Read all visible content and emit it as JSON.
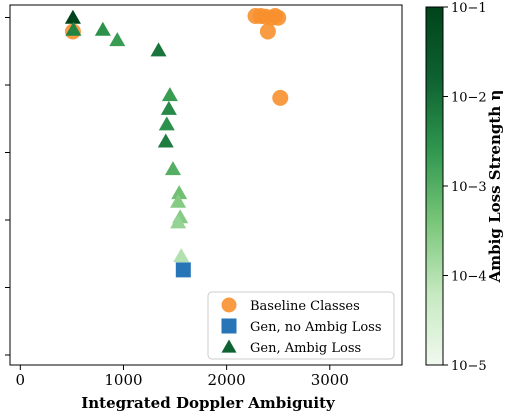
{
  "chart_data": {
    "type": "scatter",
    "title": "",
    "xlabel": "Integrated Doppler Ambiguity",
    "ylabel": "",
    "xlim": [
      -100,
      3700
    ],
    "ylim": [
      0,
      1
    ],
    "x_ticks": [
      "0",
      "1000",
      "2000",
      "3000"
    ],
    "y_ticks_labeled": false,
    "grid": false,
    "legend_position": "bottom-right",
    "colorbar": {
      "label": "Ambig Loss Strength η",
      "scale": "log",
      "range": [
        1e-05,
        0.1
      ],
      "tick_labels": [
        "10−1",
        "10−2",
        "10−3",
        "10−4",
        "10−5"
      ],
      "colors": [
        "#f1f9ef",
        "#c5e9c0",
        "#79c679",
        "#2f974e",
        "#0e6131",
        "#00441b"
      ]
    },
    "series": [
      {
        "name": "Baseline Classes",
        "marker": "circle",
        "color": "#f7902e",
        "points": [
          {
            "x": 510,
            "y": 0.955
          },
          {
            "x": 2280,
            "y": 1.0
          },
          {
            "x": 2330,
            "y": 1.0
          },
          {
            "x": 2380,
            "y": 0.998
          },
          {
            "x": 2440,
            "y": 0.995
          },
          {
            "x": 2470,
            "y": 1.0
          },
          {
            "x": 2500,
            "y": 0.995
          },
          {
            "x": 2400,
            "y": 0.955
          },
          {
            "x": 2520,
            "y": 0.762
          }
        ]
      },
      {
        "name": "Gen, no Ambig Loss",
        "marker": "square",
        "color": "#2775b6",
        "points": [
          {
            "x": 1580,
            "y": 0.262
          }
        ]
      },
      {
        "name": "Gen, Ambig Loss",
        "marker": "triangle",
        "color_by": "eta",
        "points": [
          {
            "x": 510,
            "y": 0.995,
            "eta": 0.1
          },
          {
            "x": 515,
            "y": 0.96,
            "eta": 0.005
          },
          {
            "x": 800,
            "y": 0.96,
            "eta": 0.003
          },
          {
            "x": 940,
            "y": 0.93,
            "eta": 0.002
          },
          {
            "x": 1340,
            "y": 0.9,
            "eta": 0.008
          },
          {
            "x": 1450,
            "y": 0.77,
            "eta": 0.002
          },
          {
            "x": 1440,
            "y": 0.73,
            "eta": 0.004
          },
          {
            "x": 1420,
            "y": 0.685,
            "eta": 0.003
          },
          {
            "x": 1410,
            "y": 0.635,
            "eta": 0.006
          },
          {
            "x": 1480,
            "y": 0.555,
            "eta": 0.001
          },
          {
            "x": 1540,
            "y": 0.485,
            "eta": 0.0005
          },
          {
            "x": 1530,
            "y": 0.46,
            "eta": 0.0003
          },
          {
            "x": 1550,
            "y": 0.415,
            "eta": 0.0003
          },
          {
            "x": 1530,
            "y": 0.4,
            "eta": 0.0002
          },
          {
            "x": 1560,
            "y": 0.302,
            "eta": 0.0001
          }
        ]
      }
    ]
  }
}
